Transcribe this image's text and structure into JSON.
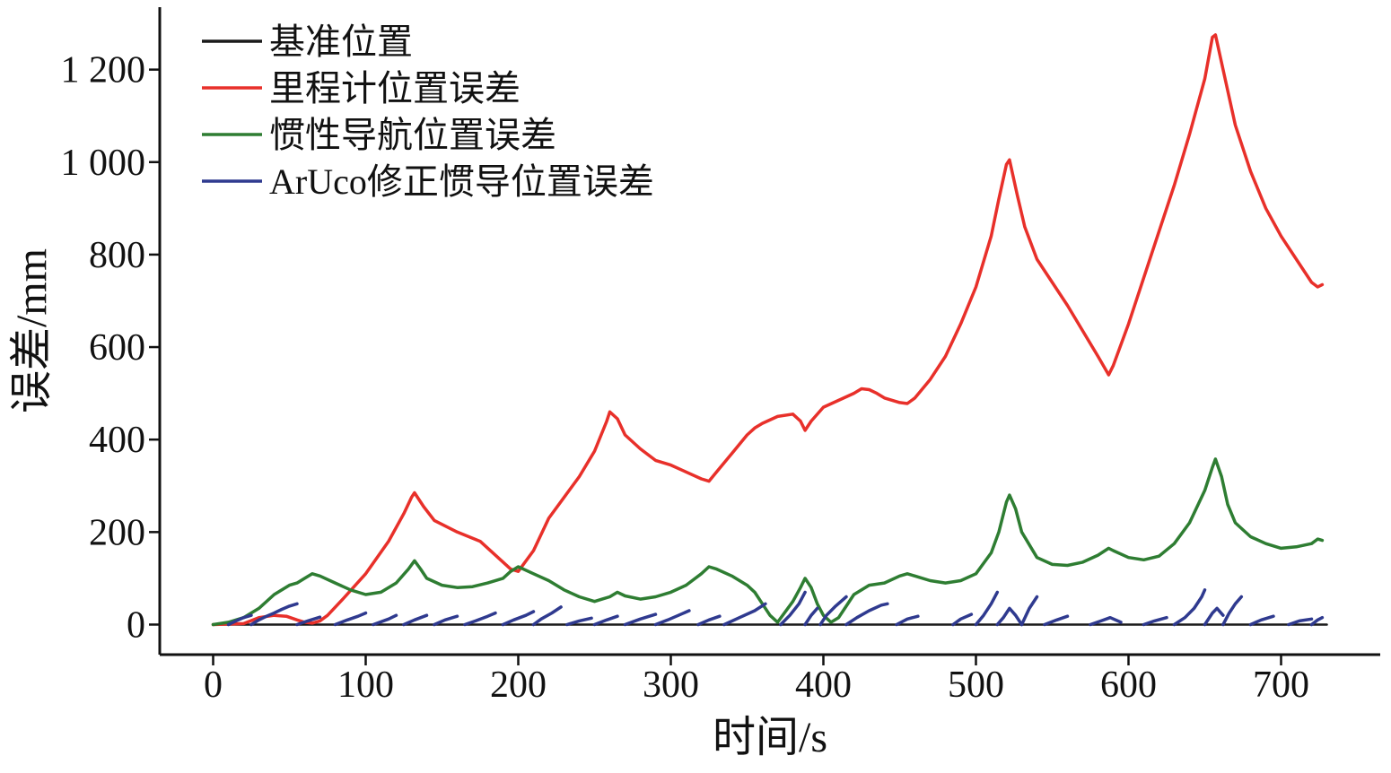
{
  "chart_data": {
    "type": "line",
    "title": "",
    "xlabel": "时间/s",
    "ylabel": "误差/mm",
    "xlim": [
      -35,
      765
    ],
    "ylim": [
      -65,
      1335
    ],
    "xticks": [
      0,
      100,
      200,
      300,
      400,
      500,
      600,
      700
    ],
    "xtick_labels": [
      "0",
      "100",
      "200",
      "300",
      "400",
      "500",
      "600",
      "700"
    ],
    "yticks": [
      0,
      200,
      400,
      600,
      800,
      1000,
      1200
    ],
    "ytick_labels": [
      "0",
      "200",
      "400",
      "600",
      "800",
      "1 000",
      "1 200"
    ],
    "grid": false,
    "legend_position": "top-left",
    "series": [
      {
        "name": "基准位置",
        "color": "#1a1a1a",
        "segments": [
          {
            "x": [
              0,
              730
            ],
            "y": [
              0,
              0
            ]
          }
        ]
      },
      {
        "name": "里程计位置误差",
        "color": "#e8302a",
        "segments": [
          {
            "x": [
              0,
              20,
              30,
              40,
              48,
              55,
              60,
              65,
              70,
              75,
              85,
              100,
              115,
              125,
              130,
              132,
              138,
              145,
              160,
              175,
              185,
              195,
              200,
              210,
              220,
              230,
              240,
              250,
              258,
              260,
              265,
              270,
              280,
              290,
              300,
              310,
              320,
              325,
              330,
              340,
              350,
              355,
              360,
              370,
              380,
              385,
              388,
              392,
              400,
              410,
              420,
              425,
              430,
              435,
              440,
              450,
              455,
              460,
              470,
              480,
              490,
              500,
              510,
              515,
              520,
              522,
              527,
              532,
              540,
              550,
              560,
              570,
              580,
              587,
              590,
              600,
              610,
              620,
              630,
              640,
              650,
              655,
              657,
              662,
              670,
              680,
              690,
              700,
              710,
              720,
              724,
              727
            ],
            "y": [
              0,
              2,
              15,
              20,
              18,
              10,
              5,
              3,
              8,
              20,
              55,
              110,
              180,
              240,
              275,
              285,
              255,
              225,
              200,
              180,
              150,
              120,
              115,
              160,
              230,
              275,
              320,
              375,
              440,
              460,
              445,
              410,
              380,
              355,
              345,
              330,
              315,
              310,
              330,
              370,
              410,
              425,
              435,
              450,
              455,
              440,
              420,
              440,
              470,
              485,
              500,
              510,
              508,
              500,
              490,
              480,
              478,
              490,
              530,
              580,
              650,
              730,
              840,
              920,
              995,
              1005,
              930,
              860,
              790,
              740,
              690,
              635,
              580,
              540,
              560,
              650,
              750,
              850,
              950,
              1060,
              1180,
              1270,
              1275,
              1200,
              1080,
              980,
              900,
              840,
              790,
              740,
              730,
              735
            ]
          }
        ]
      },
      {
        "name": "惯性导航位置误差",
        "color": "#2e7d32",
        "segments": [
          {
            "x": [
              0,
              10,
              20,
              30,
              40,
              50,
              55,
              60,
              65,
              70,
              80,
              90,
              100,
              110,
              120,
              128,
              132,
              136,
              140,
              150,
              160,
              170,
              180,
              190,
              195,
              200,
              210,
              220,
              230,
              240,
              250,
              255,
              260,
              265,
              270,
              280,
              290,
              300,
              310,
              320,
              325,
              330,
              340,
              350,
              355,
              360,
              365,
              370,
              380,
              385,
              388,
              392,
              396,
              400,
              405,
              410,
              415,
              420,
              430,
              440,
              450,
              455,
              460,
              470,
              480,
              490,
              500,
              510,
              515,
              520,
              522,
              526,
              530,
              540,
              550,
              560,
              570,
              580,
              587,
              590,
              600,
              610,
              620,
              630,
              640,
              650,
              655,
              657,
              661,
              665,
              670,
              680,
              690,
              700,
              710,
              720,
              724,
              727
            ],
            "y": [
              0,
              5,
              15,
              35,
              65,
              85,
              90,
              100,
              110,
              105,
              90,
              75,
              65,
              70,
              90,
              120,
              138,
              120,
              100,
              85,
              80,
              82,
              90,
              100,
              115,
              125,
              110,
              95,
              75,
              60,
              50,
              55,
              60,
              70,
              62,
              55,
              60,
              70,
              85,
              110,
              125,
              120,
              105,
              85,
              70,
              45,
              20,
              5,
              50,
              80,
              100,
              80,
              45,
              20,
              5,
              15,
              40,
              65,
              85,
              90,
              105,
              110,
              105,
              95,
              90,
              95,
              110,
              155,
              200,
              265,
              280,
              250,
              200,
              145,
              130,
              128,
              135,
              150,
              165,
              160,
              145,
              140,
              148,
              175,
              220,
              290,
              340,
              358,
              320,
              260,
              220,
              190,
              175,
              165,
              168,
              175,
              185,
              182
            ]
          }
        ]
      },
      {
        "name": "ArUco修正惯导位置误差",
        "color": "#2f3a8f",
        "segments": [
          {
            "x": [
              10,
              15,
              20,
              25
            ],
            "y": [
              0,
              8,
              15,
              20
            ]
          },
          {
            "x": [
              25,
              30,
              35,
              40,
              45,
              50,
              55
            ],
            "y": [
              0,
              10,
              18,
              25,
              33,
              40,
              45
            ]
          },
          {
            "x": [
              55,
              62,
              70
            ],
            "y": [
              0,
              8,
              16
            ]
          },
          {
            "x": [
              80,
              88,
              95,
              100
            ],
            "y": [
              0,
              10,
              18,
              25
            ]
          },
          {
            "x": [
              105,
              115,
              120
            ],
            "y": [
              0,
              12,
              20
            ]
          },
          {
            "x": [
              125,
              132,
              140
            ],
            "y": [
              0,
              10,
              20
            ]
          },
          {
            "x": [
              145,
              152,
              160
            ],
            "y": [
              0,
              10,
              18
            ]
          },
          {
            "x": [
              165,
              172,
              180,
              185
            ],
            "y": [
              0,
              8,
              18,
              25
            ]
          },
          {
            "x": [
              190,
              197,
              205,
              210
            ],
            "y": [
              0,
              10,
              20,
              28
            ]
          },
          {
            "x": [
              210,
              215,
              222,
              228
            ],
            "y": [
              0,
              12,
              25,
              38
            ]
          },
          {
            "x": [
              232,
              240,
              248
            ],
            "y": [
              0,
              8,
              14
            ]
          },
          {
            "x": [
              250,
              258,
              265
            ],
            "y": [
              0,
              10,
              18
            ]
          },
          {
            "x": [
              270,
              280,
              290
            ],
            "y": [
              0,
              12,
              22
            ]
          },
          {
            "x": [
              290,
              298,
              305,
              312
            ],
            "y": [
              0,
              10,
              20,
              30
            ]
          },
          {
            "x": [
              318,
              325,
              332
            ],
            "y": [
              0,
              10,
              18
            ]
          },
          {
            "x": [
              335,
              345,
              355,
              362
            ],
            "y": [
              0,
              15,
              30,
              45
            ]
          },
          {
            "x": [
              372,
              378,
              384,
              388
            ],
            "y": [
              0,
              20,
              45,
              70
            ]
          },
          {
            "x": [
              388,
              392,
              396
            ],
            "y": [
              0,
              20,
              35
            ]
          },
          {
            "x": [
              398,
              402,
              408,
              415
            ],
            "y": [
              0,
              20,
              40,
              60
            ]
          },
          {
            "x": [
              415,
              422,
              430,
              438,
              442
            ],
            "y": [
              0,
              15,
              30,
              42,
              45
            ]
          },
          {
            "x": [
              448,
              455,
              462
            ],
            "y": [
              0,
              12,
              18
            ]
          },
          {
            "x": [
              485,
              490,
              497
            ],
            "y": [
              0,
              12,
              22
            ]
          },
          {
            "x": [
              500,
              505,
              510,
              514
            ],
            "y": [
              0,
              20,
              45,
              70
            ]
          },
          {
            "x": [
              514,
              518,
              522,
              526,
              530
            ],
            "y": [
              0,
              15,
              35,
              20,
              0
            ]
          },
          {
            "x": [
              530,
              535,
              540
            ],
            "y": [
              0,
              35,
              60
            ]
          },
          {
            "x": [
              545,
              553,
              560
            ],
            "y": [
              0,
              10,
              18
            ]
          },
          {
            "x": [
              575,
              582,
              588,
              595
            ],
            "y": [
              0,
              8,
              15,
              5
            ]
          },
          {
            "x": [
              610,
              617,
              625
            ],
            "y": [
              0,
              8,
              15
            ]
          },
          {
            "x": [
              630,
              637,
              643,
              648,
              650
            ],
            "y": [
              0,
              15,
              35,
              60,
              75
            ]
          },
          {
            "x": [
              650,
              655,
              658,
              662
            ],
            "y": [
              0,
              25,
              35,
              20
            ]
          },
          {
            "x": [
              662,
              666,
              670,
              674
            ],
            "y": [
              0,
              25,
              45,
              60
            ]
          },
          {
            "x": [
              680,
              687,
              695
            ],
            "y": [
              0,
              10,
              18
            ]
          },
          {
            "x": [
              705,
              712,
              720
            ],
            "y": [
              0,
              8,
              12
            ]
          },
          {
            "x": [
              720,
              724,
              727
            ],
            "y": [
              0,
              10,
              15
            ]
          }
        ]
      }
    ]
  }
}
